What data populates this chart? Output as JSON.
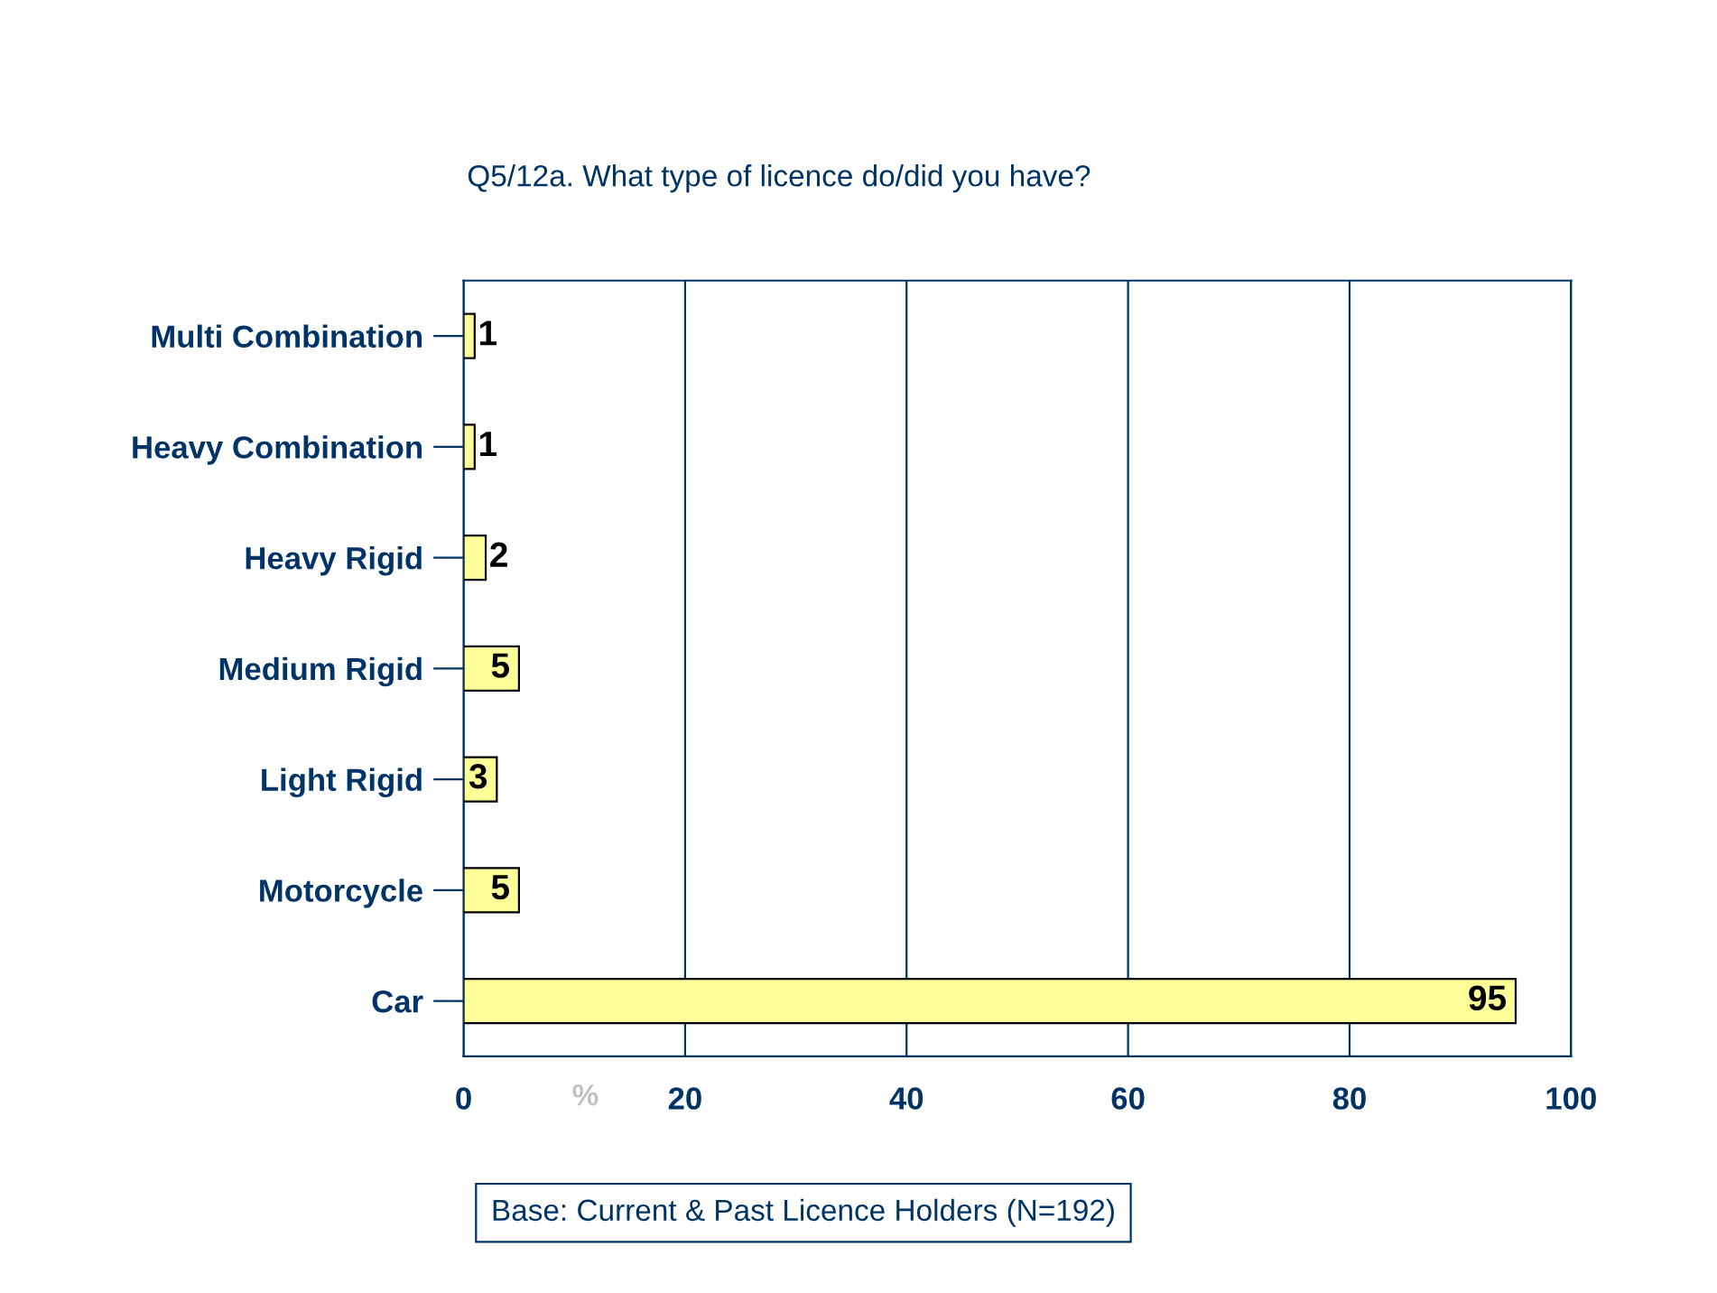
{
  "chart_data": {
    "type": "bar",
    "orientation": "horizontal",
    "title": "Q5/12a. What type of licence do/did you have?",
    "categories": [
      "Multi Combination",
      "Heavy Combination",
      "Heavy Rigid",
      "Medium Rigid",
      "Light Rigid",
      "Motorcycle",
      "Car"
    ],
    "values": [
      1,
      1,
      2,
      5,
      3,
      5,
      95
    ],
    "color": "#ffff99",
    "xlabel": "%",
    "xlim": [
      0,
      100
    ],
    "xticks": [
      0,
      20,
      40,
      60,
      80,
      100
    ],
    "grid": "x",
    "data_labels": true,
    "annotations": [
      "Base: Current & Past Licence Holders (N=192)"
    ]
  }
}
